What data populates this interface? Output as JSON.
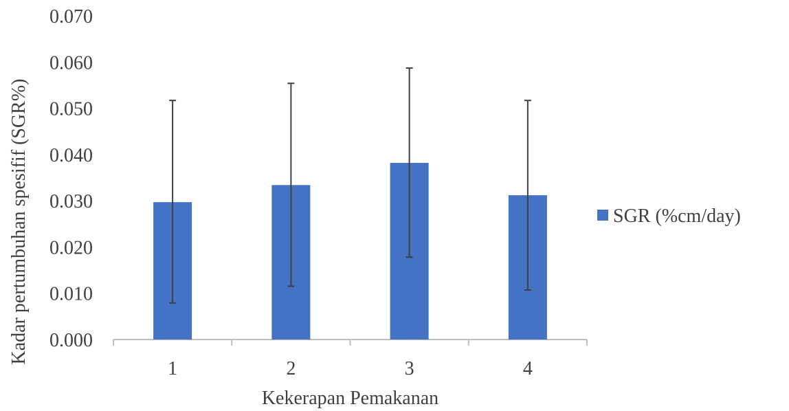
{
  "chart_data": {
    "type": "bar",
    "title": "",
    "xlabel": "Kekerapan Pemakanan",
    "ylabel": "Kadar pertumbuhan spesifif (SGR%)",
    "categories": [
      "1",
      "2",
      "3",
      "4"
    ],
    "series": [
      {
        "name": "SGR (%cm/day)",
        "values": [
          0.0297,
          0.0334,
          0.0382,
          0.0312
        ],
        "error_low": [
          0.0079,
          0.0115,
          0.0178,
          0.0107
        ],
        "error_high": [
          0.0517,
          0.0554,
          0.0587,
          0.0517
        ],
        "color": "#4472c4"
      }
    ],
    "ylim": [
      0,
      0.07
    ],
    "yticks": [
      "0.000",
      "0.010",
      "0.020",
      "0.030",
      "0.040",
      "0.050",
      "0.060",
      "0.070"
    ],
    "grid": false,
    "legend": "right"
  }
}
